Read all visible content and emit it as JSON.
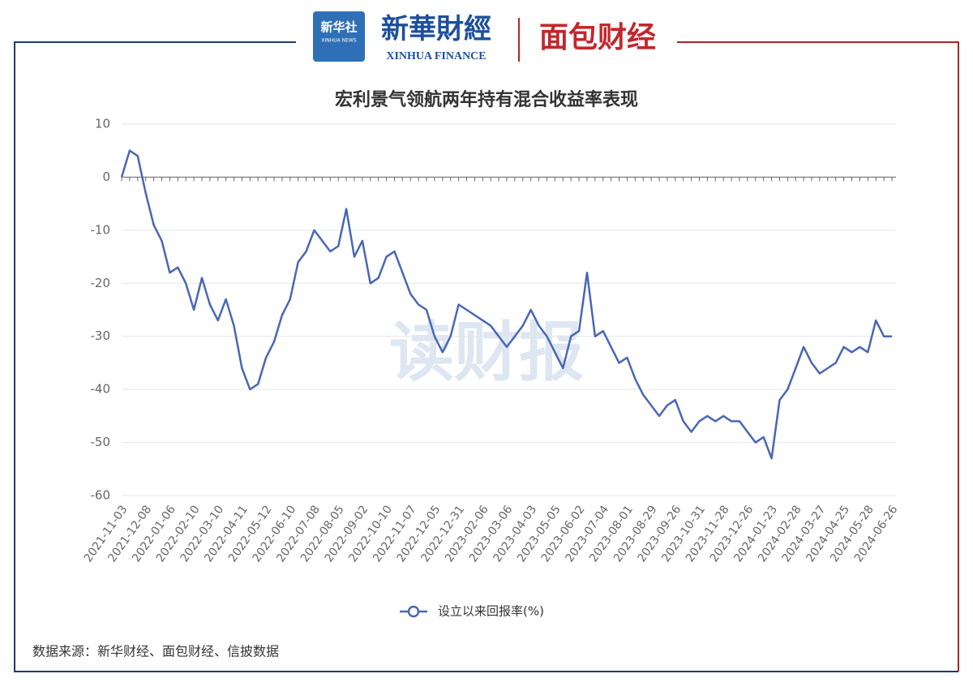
{
  "header": {
    "logo1": "新华社",
    "logo1_sub": "XINHUA NEWS",
    "logo2": "新華財經",
    "logo2_sub": "XINHUA FINANCE",
    "logo3": "面包财经"
  },
  "watermark": "读财报",
  "source": "数据来源：新华财经、面包财经、信披数据",
  "chart_data": {
    "type": "line",
    "title": "宏利景气领航两年持有混合收益率表现",
    "categories": [
      "2021-11-03",
      null,
      null,
      "2021-12-08",
      null,
      null,
      "2022-01-06",
      null,
      null,
      "2022-02-10",
      null,
      null,
      "2022-03-10",
      null,
      null,
      "2022-04-11",
      null,
      null,
      "2022-05-12",
      null,
      null,
      "2022-06-10",
      null,
      null,
      "2022-07-08",
      null,
      null,
      "2022-08-05",
      null,
      null,
      "2022-09-02",
      null,
      null,
      "2022-10-10",
      null,
      null,
      "2022-11-07",
      null,
      null,
      "2022-12-05",
      null,
      null,
      "2022-12-31",
      null,
      null,
      "2023-02-06",
      null,
      null,
      "2023-03-06",
      null,
      null,
      "2023-04-03",
      null,
      null,
      "2023-05-05",
      null,
      null,
      "2023-06-02",
      null,
      null,
      "2023-07-04",
      null,
      null,
      "2023-08-01",
      null,
      null,
      "2023-08-29",
      null,
      null,
      "2023-09-26",
      null,
      null,
      "2023-10-31",
      null,
      null,
      "2023-11-28",
      null,
      null,
      "2023-12-26",
      null,
      null,
      "2024-01-23",
      null,
      null,
      "2024-02-28",
      null,
      null,
      "2024-03-27",
      null,
      null,
      "2024-04-25",
      null,
      null,
      "2024-05-28",
      null,
      null,
      "2024-06-26"
    ],
    "series": [
      {
        "name": "设立以来回报率(%)",
        "color": "#4a67b5",
        "values": [
          0,
          5,
          4,
          -3,
          -9,
          -12,
          -18,
          -17,
          -20,
          -25,
          -19,
          -24,
          -27,
          -23,
          -28,
          -36,
          -40,
          -39,
          -34,
          -31,
          -26,
          -23,
          -16,
          -14,
          -10,
          -12,
          -14,
          -13,
          -6,
          -15,
          -12,
          -20,
          -19,
          -15,
          -14,
          -18,
          -22,
          -24,
          -25,
          -30,
          -33,
          -30,
          -24,
          -25,
          -26,
          -27,
          -28,
          -30,
          -32,
          -30,
          -28,
          -25,
          -28,
          -30,
          -33,
          -36,
          -30,
          -29,
          -18,
          -30,
          -29,
          -32,
          -35,
          -34,
          -38,
          -41,
          -43,
          -45,
          -43,
          -42,
          -46,
          -48,
          -46,
          -45,
          -46,
          -45,
          -46,
          -46,
          -48,
          -50,
          -49,
          -53,
          -42,
          -40,
          -36,
          -32,
          -35,
          -37,
          -36,
          -35,
          -32,
          -33,
          -32,
          -33,
          -27,
          -30,
          -30
        ]
      }
    ],
    "ylim": [
      -60,
      10
    ],
    "yticks": [
      10,
      0,
      -10,
      -20,
      -30,
      -40,
      -50,
      -60
    ],
    "grid": true
  }
}
